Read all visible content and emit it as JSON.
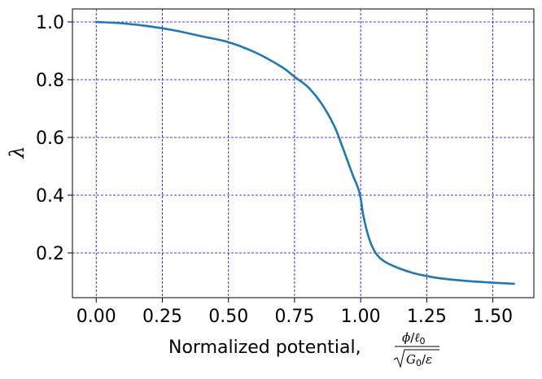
{
  "chart_data": {
    "type": "line",
    "xlabel_text": "Normalized potential, ",
    "xlabel_frac_num_phi": "ϕ",
    "xlabel_frac_num_slash": "/",
    "xlabel_frac_num_ell": "ℓ",
    "xlabel_frac_num_sub": "0",
    "xlabel_frac_den_G": "G",
    "xlabel_frac_den_sub": "0",
    "xlabel_frac_den_slash": "/",
    "xlabel_frac_den_eps": "ε",
    "ylabel": "λ",
    "xlim": [
      -0.09,
      1.655
    ],
    "ylim": [
      0.045,
      1.045
    ],
    "xticks": [
      "0.00",
      "0.25",
      "0.50",
      "0.75",
      "1.00",
      "1.25",
      "1.50"
    ],
    "xtick_values": [
      0.0,
      0.25,
      0.5,
      0.75,
      1.0,
      1.25,
      1.5
    ],
    "yticks": [
      "0.2",
      "0.4",
      "0.6",
      "0.8",
      "1.0"
    ],
    "ytick_values": [
      0.2,
      0.4,
      0.6,
      0.8,
      1.0
    ],
    "grid": true,
    "grid_color": "#0000ff",
    "line_color": "#1f77b4",
    "series": [
      {
        "x": [
          0.0,
          0.1,
          0.2,
          0.3,
          0.4,
          0.5,
          0.6,
          0.7,
          0.75,
          0.8,
          0.85,
          0.9,
          0.93,
          0.95,
          0.97,
          0.99,
          1.0,
          1.01,
          1.03,
          1.05,
          1.07,
          1.1,
          1.15,
          1.2,
          1.25,
          1.3,
          1.4,
          1.5,
          1.58
        ],
        "y": [
          1.0,
          0.995,
          0.985,
          0.97,
          0.95,
          0.93,
          0.895,
          0.845,
          0.81,
          0.775,
          0.72,
          0.64,
          0.57,
          0.52,
          0.47,
          0.425,
          0.39,
          0.33,
          0.255,
          0.21,
          0.185,
          0.165,
          0.145,
          0.13,
          0.12,
          0.112,
          0.103,
          0.097,
          0.093
        ]
      }
    ]
  }
}
